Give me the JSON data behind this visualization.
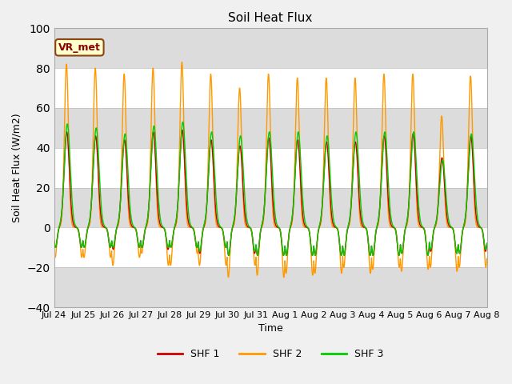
{
  "title": "Soil Heat Flux",
  "xlabel": "Time",
  "ylabel": "Soil Heat Flux (W/m2)",
  "ylim": [
    -40,
    100
  ],
  "yticks": [
    -40,
    -20,
    0,
    20,
    40,
    60,
    80,
    100
  ],
  "colors": {
    "SHF 1": "#cc0000",
    "SHF 2": "#ff9900",
    "SHF 3": "#00cc00"
  },
  "legend_label": "VR_met",
  "bg_color": "#f0f0f0",
  "plot_bg_color": "#ffffff",
  "band_color": "#dcdcdc",
  "n_days": 15,
  "xtick_labels": [
    "Jul 24",
    "Jul 25",
    "Jul 26",
    "Jul 27",
    "Jul 28",
    "Jul 29",
    "Jul 30",
    "Jul 31",
    "Aug 1",
    "Aug 2",
    "Aug 3",
    "Aug 4",
    "Aug 5",
    "Aug 6",
    "Aug 7",
    "Aug 8"
  ],
  "shf2_peaks": [
    82,
    80,
    77,
    80,
    83,
    77,
    70,
    77,
    75,
    75,
    75,
    77,
    77,
    56,
    76
  ],
  "shf2_troughs": [
    -15,
    -15,
    -19,
    -13,
    -19,
    -19,
    -25,
    -24,
    -23,
    -23,
    -20,
    -21,
    -22,
    -20,
    -20
  ],
  "shf1_peaks": [
    48,
    46,
    44,
    48,
    49,
    44,
    41,
    45,
    44,
    43,
    43,
    46,
    47,
    35,
    46
  ],
  "shf1_troughs": [
    -10,
    -10,
    -11,
    -10,
    -10,
    -13,
    -14,
    -14,
    -14,
    -14,
    -14,
    -14,
    -13,
    -12,
    -13
  ],
  "shf3_peaks": [
    52,
    50,
    47,
    51,
    53,
    48,
    46,
    48,
    48,
    46,
    48,
    48,
    48,
    34,
    47
  ],
  "shf3_troughs": [
    -10,
    -10,
    -10,
    -10,
    -10,
    -12,
    -14,
    -14,
    -14,
    -14,
    -14,
    -14,
    -13,
    -11,
    -13
  ],
  "linewidth": 1.0
}
